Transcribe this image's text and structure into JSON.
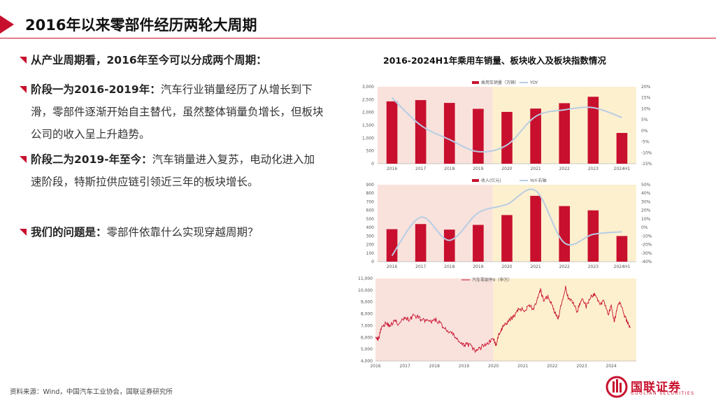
{
  "page": {
    "title": "2016年以来零部件经历两轮大周期",
    "source": "资料来源：Wind，中国汽车工业协会，国联证券研究所",
    "logo": {
      "name": "国联证券",
      "sub": "GUOLIAN SECURITIES"
    }
  },
  "bullets": [
    {
      "bold": "从产业周期看，2016年至今可以分成两个周期：",
      "text": ""
    },
    {
      "bold": "阶段一为2016-2019年：",
      "text": "汽车行业销量经历了从增长到下滑，零部件逐渐开始自主替代，虽然整体销量负增长，但板块公司的收入呈上升趋势。"
    },
    {
      "bold": "阶段二为2019-年至今：",
      "text": "汽车销量进入复苏，电动化进入加速阶段，特斯拉供应链引领近三年的板块增长。"
    },
    {
      "bold": "我们的问题是：",
      "text": "零部件依靠什么实现穿越周期？"
    }
  ],
  "chart_title": "2016-2024H1年乘用车销量、板块收入及板块指数情况",
  "chart_data": [
    {
      "type": "bar",
      "categories": [
        "2016",
        "2017",
        "2018",
        "2019",
        "2020",
        "2021",
        "2022",
        "2023",
        "2024H1"
      ],
      "series": [
        {
          "name": "乘用车销量（万辆）",
          "values": [
            2430,
            2480,
            2370,
            2140,
            2020,
            2150,
            2360,
            2610,
            1200
          ],
          "axis": "left",
          "color": "#c8102e"
        },
        {
          "name": "YOY",
          "values": [
            15.0,
            2.5,
            -4.0,
            -9.5,
            -6.5,
            6.5,
            9.5,
            10.5,
            6.0
          ],
          "axis": "right",
          "color": "#b8cde3",
          "kind": "line"
        }
      ],
      "ylim": [
        0,
        3000
      ],
      "yticks": [
        "0",
        "500",
        "1,000",
        "1,500",
        "2,000",
        "2,500",
        "3,000"
      ],
      "y2lim": [
        -15,
        20
      ],
      "y2ticks": [
        "-15%",
        "-10%",
        "-5%",
        "0%",
        "5%",
        "10%",
        "15%",
        "20%"
      ]
    },
    {
      "type": "bar",
      "categories": [
        "2016",
        "2017",
        "2018",
        "2019",
        "2020",
        "2021",
        "2022",
        "2023",
        "2024H1"
      ],
      "series": [
        {
          "name": "收入(亿元)",
          "values": [
            380,
            440,
            375,
            430,
            545,
            770,
            650,
            600,
            300
          ],
          "axis": "left",
          "color": "#c8102e"
        },
        {
          "name": "YoY-右轴",
          "values": [
            -33,
            12,
            -15,
            17,
            27,
            43,
            -18,
            -8,
            -5
          ],
          "axis": "right",
          "color": "#b8cde3",
          "kind": "line"
        }
      ],
      "ylim": [
        0,
        900
      ],
      "yticks": [
        "0",
        "100",
        "200",
        "300",
        "400",
        "500",
        "600",
        "700",
        "800",
        "900"
      ],
      "y2lim": [
        -40,
        50
      ],
      "y2ticks": [
        "-40%",
        "-30%",
        "-20%",
        "-10%",
        "0%",
        "10%",
        "20%",
        "30%",
        "40%",
        "50%"
      ]
    },
    {
      "type": "line",
      "series": [
        {
          "name": "汽车零部件II（申万）",
          "color": "#c8102e",
          "x": [
            2016.0,
            2016.1,
            2016.2,
            2016.35,
            2016.5,
            2016.65,
            2016.8,
            2017.0,
            2017.15,
            2017.3,
            2017.5,
            2017.7,
            2017.9,
            2018.05,
            2018.2,
            2018.4,
            2018.6,
            2018.8,
            2018.95,
            2019.1,
            2019.25,
            2019.4,
            2019.55,
            2019.7,
            2019.85,
            2020.0,
            2020.1,
            2020.2,
            2020.3,
            2020.45,
            2020.6,
            2020.75,
            2020.9,
            2021.05,
            2021.2,
            2021.35,
            2021.5,
            2021.6,
            2021.7,
            2021.85,
            2022.0,
            2022.1,
            2022.2,
            2022.3,
            2022.45,
            2022.55,
            2022.7,
            2022.85,
            2023.0,
            2023.15,
            2023.3,
            2023.45,
            2023.6,
            2023.75,
            2023.9,
            2024.0,
            2024.1,
            2024.2,
            2024.3,
            2024.45,
            2024.55,
            2024.65
          ],
          "values": [
            6200,
            5800,
            6900,
            7200,
            7000,
            7400,
            7100,
            7700,
            7500,
            7900,
            7600,
            7400,
            7300,
            7500,
            7200,
            6600,
            6300,
            5800,
            5300,
            5500,
            5200,
            4800,
            5100,
            5400,
            5600,
            5900,
            5300,
            6400,
            6800,
            7200,
            7600,
            8000,
            8500,
            8200,
            8800,
            8400,
            9200,
            10000,
            9100,
            9500,
            8700,
            8000,
            7600,
            8800,
            10300,
            9200,
            9000,
            8200,
            9400,
            8600,
            9400,
            9700,
            8800,
            9100,
            8000,
            8600,
            7300,
            8600,
            9000,
            7800,
            7300,
            6800
          ]
        }
      ],
      "ylim": [
        4000,
        11000
      ],
      "yticks": [
        "4,000",
        "5,000",
        "6,000",
        "7,000",
        "8,000",
        "9,000",
        "10,000",
        "11,000"
      ],
      "xticks": [
        "2016",
        "2017",
        "2018",
        "2019",
        "2020",
        "2021",
        "2022",
        "2023",
        "2024"
      ]
    }
  ]
}
